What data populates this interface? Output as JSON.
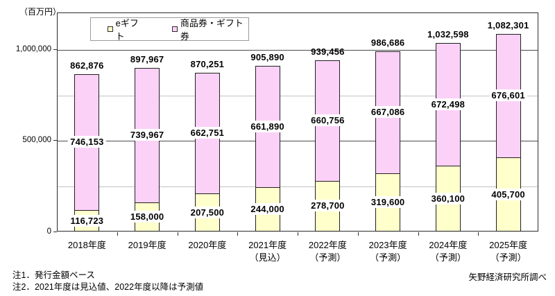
{
  "unit_label": "（百万円）",
  "legend": {
    "items": [
      {
        "label": "eギフト",
        "color": "#FFFFCC"
      },
      {
        "label": "商品券・ギフト券",
        "color": "#FCD1F7"
      }
    ]
  },
  "notes": {
    "line1": "注1．発行金額ベース",
    "line2": "注2．2021年度は見込値、2022年度以降は予測値"
  },
  "source": "矢野経済研究所調べ",
  "colors": {
    "egift_fill": "#FFFFCC",
    "voucher_fill": "#FCD1F7",
    "bar_border": "#1f1f1f",
    "minor_grid": "#c2c2c2",
    "major_grid": "#4a4a4a"
  },
  "chart_data": {
    "type": "bar",
    "stacked": true,
    "title": "",
    "ylabel": "（百万円）",
    "xlabel": "",
    "categories": [
      "2018年度",
      "2019年度",
      "2020年度",
      "2021年度",
      "2022年度",
      "2023年度",
      "2024年度",
      "2025年度"
    ],
    "category_sublabels": [
      "",
      "",
      "",
      "（見込）",
      "（予測）",
      "（予測）",
      "（予測）",
      "（予測）"
    ],
    "series": [
      {
        "name": "eギフト",
        "color": "#FFFFCC",
        "values": [
          116723,
          158000,
          207500,
          244000,
          278700,
          319600,
          360100,
          405700
        ]
      },
      {
        "name": "商品券・ギフト券",
        "color": "#FCD1F7",
        "values": [
          746153,
          739967,
          662751,
          661890,
          660756,
          667086,
          672498,
          676601
        ]
      }
    ],
    "totals": [
      862876,
      897967,
      870251,
      905890,
      939456,
      986686,
      1032598,
      1082301
    ],
    "ylim": [
      0,
      1200000
    ],
    "yticks": [
      0,
      500000,
      1000000
    ],
    "minor_gridlines": [
      250000,
      750000
    ],
    "grid": true,
    "legend_position": "top-left-inside"
  }
}
